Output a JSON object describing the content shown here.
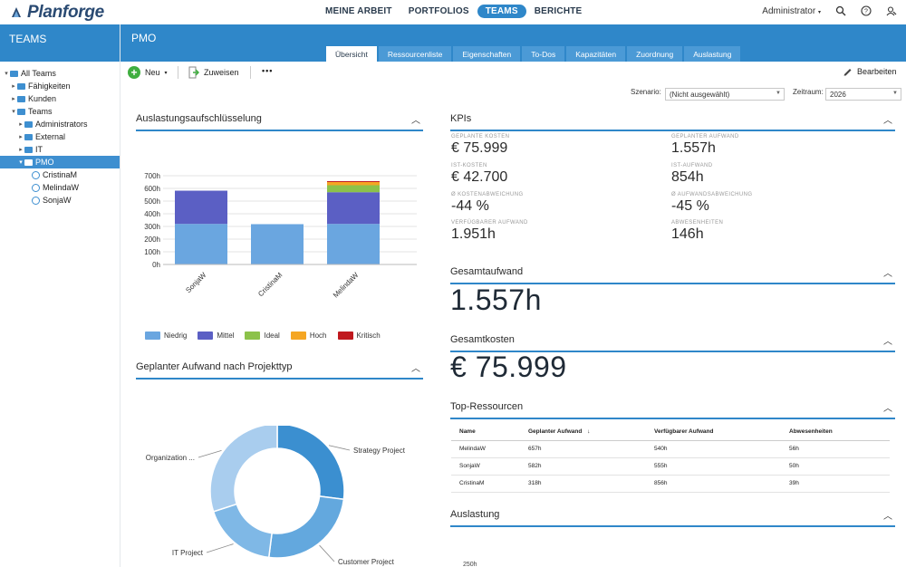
{
  "app": {
    "logo_text": "Planforge"
  },
  "nav": {
    "items": [
      "MEINE ARBEIT",
      "PORTFOLIOS",
      "TEAMS",
      "BERICHTE"
    ],
    "active": "TEAMS",
    "user": "Administrator"
  },
  "sidebar": {
    "title": "TEAMS",
    "tree": [
      {
        "label": "All Teams",
        "level": 0,
        "arrow": "▾",
        "kind": "folder"
      },
      {
        "label": "Fähigkeiten",
        "level": 1,
        "arrow": "▸",
        "kind": "folder"
      },
      {
        "label": "Kunden",
        "level": 1,
        "arrow": "▸",
        "kind": "folder"
      },
      {
        "label": "Teams",
        "level": 1,
        "arrow": "▾",
        "kind": "folder"
      },
      {
        "label": "Administrators",
        "level": 2,
        "arrow": "▸",
        "kind": "folder"
      },
      {
        "label": "External",
        "level": 2,
        "arrow": "▸",
        "kind": "folder"
      },
      {
        "label": "IT",
        "level": 2,
        "arrow": "▸",
        "kind": "folder"
      },
      {
        "label": "PMO",
        "level": 2,
        "arrow": "▾",
        "kind": "folder",
        "selected": true
      },
      {
        "label": "CristinaM",
        "level": 3,
        "arrow": "",
        "kind": "user"
      },
      {
        "label": "MelindaW",
        "level": 3,
        "arrow": "",
        "kind": "user"
      },
      {
        "label": "SonjaW",
        "level": 3,
        "arrow": "",
        "kind": "user"
      }
    ]
  },
  "header": {
    "title": "PMO",
    "tabs": [
      "Übersicht",
      "Ressourcenliste",
      "Eigenschaften",
      "To-Dos",
      "Kapazitäten",
      "Zuordnung",
      "Auslastung"
    ],
    "active_tab": "Übersicht"
  },
  "toolbar": {
    "new_label": "Neu",
    "assign_label": "Zuweisen",
    "more_label": "•••",
    "edit_label": "Bearbeiten"
  },
  "filters": {
    "scenario_label": "Szenario:",
    "scenario_value": "(Nicht ausgewählt)",
    "period_label": "Zeitraum:",
    "period_value": "2026"
  },
  "panels": {
    "utilization": "Auslastungsaufschlüsselung",
    "planned_by_type": "Geplanter Aufwand nach Projekttyp",
    "kpis": "KPIs",
    "total_effort": "Gesamtaufwand",
    "total_cost": "Gesamtkosten",
    "top_resources": "Top-Ressourcen",
    "workload": "Auslastung"
  },
  "kpis": [
    {
      "label": "GEPLANTE KOSTEN",
      "value": "€ 75.999"
    },
    {
      "label": "GEPLANTER AUFWAND",
      "value": "1.557h"
    },
    {
      "label": "IST-KOSTEN",
      "value": "€ 42.700"
    },
    {
      "label": "IST-AUFWAND",
      "value": "854h"
    },
    {
      "label": "Ø KOSTENABWEICHUNG",
      "value": "-44 %"
    },
    {
      "label": "Ø AUFWANDSABWEICHUNG",
      "value": "-45 %"
    },
    {
      "label": "VERFÜGBARER AUFWAND",
      "value": "1.951h"
    },
    {
      "label": "ABWESENHEITEN",
      "value": "146h"
    }
  ],
  "totals": {
    "effort": "1.557h",
    "cost": "€ 75.999"
  },
  "resources_table": {
    "headers": [
      "Name",
      "Geplanter Aufwand",
      "Verfügbarer Aufwand",
      "Abwesenheiten"
    ],
    "sort_arrow": "↓",
    "rows": [
      [
        "MelindaW",
        "657h",
        "540h",
        "56h"
      ],
      [
        "SonjaW",
        "582h",
        "555h",
        "50h"
      ],
      [
        "CristinaM",
        "318h",
        "856h",
        "39h"
      ]
    ]
  },
  "workload_axis_hint": "250h",
  "colors": {
    "primary": "#2f87c9",
    "niedrig": "#6aa6e0",
    "mittel": "#5b5fc4",
    "ideal": "#8cc24a",
    "hoch": "#f5a623",
    "kritisch": "#c0191e"
  },
  "chart_data": [
    {
      "type": "bar",
      "stacked": true,
      "title": "Auslastungsaufschlüsselung",
      "categories": [
        "SonjaW",
        "CristinaM",
        "MelindaW"
      ],
      "y_ticks": [
        "0h",
        "100h",
        "200h",
        "300h",
        "400h",
        "500h",
        "600h",
        "700h"
      ],
      "ylim": [
        0,
        700
      ],
      "series": [
        {
          "name": "Niedrig",
          "values": [
            320,
            318,
            320
          ],
          "color": "#6aa6e0"
        },
        {
          "name": "Mittel",
          "values": [
            262,
            0,
            250
          ],
          "color": "#5b5fc4"
        },
        {
          "name": "Ideal",
          "values": [
            0,
            0,
            55
          ],
          "color": "#8cc24a"
        },
        {
          "name": "Hoch",
          "values": [
            0,
            0,
            25
          ],
          "color": "#f5a623"
        },
        {
          "name": "Kritisch",
          "values": [
            0,
            0,
            7
          ],
          "color": "#c0191e"
        }
      ],
      "legend": "bottom"
    },
    {
      "type": "pie",
      "donut": true,
      "title": "Geplanter Aufwand nach Projekttyp",
      "slices": [
        {
          "label": "Strategy Project",
          "value": 27,
          "color": "#3b8fd0"
        },
        {
          "label": "Customer Project",
          "value": 25,
          "color": "#63a8de"
        },
        {
          "label": "IT Project",
          "value": 18,
          "color": "#7fb8e6"
        },
        {
          "label": "Organization ...",
          "value": 30,
          "color": "#a9cdee"
        }
      ]
    }
  ]
}
